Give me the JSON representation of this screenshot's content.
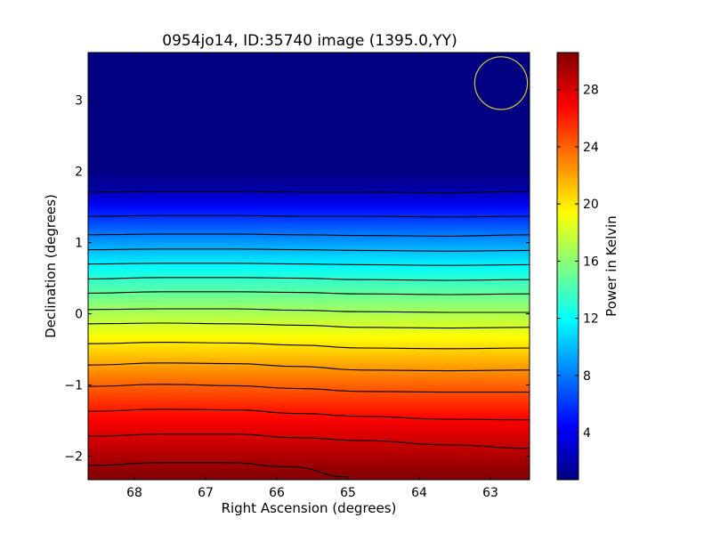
{
  "chart_data": {
    "type": "heatmap",
    "title": "0954jo14, ID:35740 image (1395.0,YY)",
    "xlabel": "Right Ascension (degrees)",
    "ylabel": "Declination (degrees)",
    "xlim": [
      68.65,
      62.45
    ],
    "ylim": [
      -2.33,
      3.67
    ],
    "x_ticks": [
      68,
      67,
      66,
      65,
      64,
      63
    ],
    "x_tick_labels": [
      "68",
      "67",
      "66",
      "65",
      "64",
      "63"
    ],
    "y_ticks": [
      -2,
      -1,
      0,
      1,
      2,
      3
    ],
    "y_tick_labels": [
      "−2",
      "−1",
      "0",
      "1",
      "2",
      "3"
    ],
    "colormap": "jet",
    "colorbar": {
      "label": "Power in Kelvin",
      "vmin": 0.7,
      "vmax": 30.6,
      "ticks": [
        4,
        8,
        12,
        16,
        20,
        24,
        28
      ],
      "tick_labels": [
        "4",
        "8",
        "12",
        "16",
        "20",
        "24",
        "28"
      ]
    },
    "field_profile": {
      "declination": [
        -2.33,
        -2.0,
        -1.5,
        -1.0,
        -0.5,
        0.0,
        0.5,
        1.0,
        1.5,
        1.75,
        2.0,
        3.67
      ],
      "power_kelvin": [
        30.6,
        29.2,
        27.0,
        24.0,
        20.6,
        17.0,
        13.2,
        9.0,
        4.6,
        1.8,
        0.8,
        0.7
      ]
    },
    "contours": [
      {
        "dec": [
          -2.13,
          -2.09,
          -2.09,
          -2.15,
          -2.29
        ],
        "ra": [
          68.65,
          67.6,
          66.7,
          65.8,
          65.0
        ]
      },
      {
        "dec": [
          -1.72,
          -1.69,
          -1.69,
          -1.74,
          -1.78,
          -1.84,
          -1.89
        ],
        "ra": [
          68.65,
          67.6,
          66.6,
          65.7,
          64.8,
          63.6,
          62.45
        ]
      },
      {
        "dec": [
          -1.37,
          -1.34,
          -1.35,
          -1.4,
          -1.44,
          -1.48,
          -1.49
        ],
        "ra": [
          68.65,
          67.6,
          66.6,
          65.7,
          64.8,
          63.6,
          62.45
        ]
      },
      {
        "dec": [
          -1.02,
          -0.99,
          -1.01,
          -1.05,
          -1.09,
          -1.1,
          -1.1
        ],
        "ra": [
          68.65,
          67.6,
          66.6,
          65.7,
          64.8,
          63.6,
          62.45
        ]
      },
      {
        "dec": [
          -0.72,
          -0.69,
          -0.7,
          -0.74,
          -0.79,
          -0.8,
          -0.79
        ],
        "ra": [
          68.65,
          67.6,
          66.6,
          65.7,
          64.8,
          63.6,
          62.45
        ]
      },
      {
        "dec": [
          -0.42,
          -0.4,
          -0.41,
          -0.44,
          -0.48,
          -0.49,
          -0.48
        ],
        "ra": [
          68.65,
          67.6,
          66.6,
          65.7,
          64.8,
          63.6,
          62.45
        ]
      },
      {
        "dec": [
          -0.14,
          -0.13,
          -0.14,
          -0.16,
          -0.19,
          -0.2,
          -0.19
        ],
        "ra": [
          68.65,
          67.6,
          66.6,
          65.7,
          64.8,
          63.6,
          62.45
        ]
      },
      {
        "dec": [
          0.06,
          0.07,
          0.07,
          0.05,
          0.03,
          0.02,
          0.02
        ],
        "ra": [
          68.65,
          67.6,
          66.6,
          65.7,
          64.8,
          63.6,
          62.45
        ]
      },
      {
        "dec": [
          0.29,
          0.31,
          0.31,
          0.3,
          0.28,
          0.27,
          0.28
        ],
        "ra": [
          68.65,
          67.6,
          66.6,
          65.7,
          64.8,
          63.6,
          62.45
        ]
      },
      {
        "dec": [
          0.49,
          0.51,
          0.51,
          0.5,
          0.48,
          0.47,
          0.48
        ],
        "ra": [
          68.65,
          67.6,
          66.6,
          65.7,
          64.8,
          63.6,
          62.45
        ]
      },
      {
        "dec": [
          0.7,
          0.71,
          0.71,
          0.7,
          0.69,
          0.68,
          0.69
        ],
        "ra": [
          68.65,
          67.6,
          66.6,
          65.7,
          64.8,
          63.6,
          62.45
        ]
      },
      {
        "dec": [
          0.9,
          0.91,
          0.91,
          0.9,
          0.89,
          0.88,
          0.89
        ],
        "ra": [
          68.65,
          67.6,
          66.6,
          65.7,
          64.8,
          63.6,
          62.45
        ]
      },
      {
        "dec": [
          1.11,
          1.12,
          1.12,
          1.11,
          1.1,
          1.09,
          1.11
        ],
        "ra": [
          68.65,
          67.6,
          66.6,
          65.7,
          64.8,
          63.6,
          62.45
        ]
      },
      {
        "dec": [
          1.37,
          1.38,
          1.38,
          1.37,
          1.37,
          1.36,
          1.37
        ],
        "ra": [
          68.65,
          67.6,
          66.6,
          65.7,
          64.8,
          63.6,
          62.45
        ]
      },
      {
        "dec": [
          1.71,
          1.72,
          1.72,
          1.71,
          1.71,
          1.7,
          1.72
        ],
        "ra": [
          68.65,
          67.6,
          66.6,
          65.7,
          64.8,
          63.6,
          62.45
        ]
      }
    ],
    "beam_circle": {
      "ra": 62.85,
      "dec": 3.24,
      "radius_deg": 0.37,
      "color": "#d4c83a"
    },
    "contour_color": "#000000"
  }
}
